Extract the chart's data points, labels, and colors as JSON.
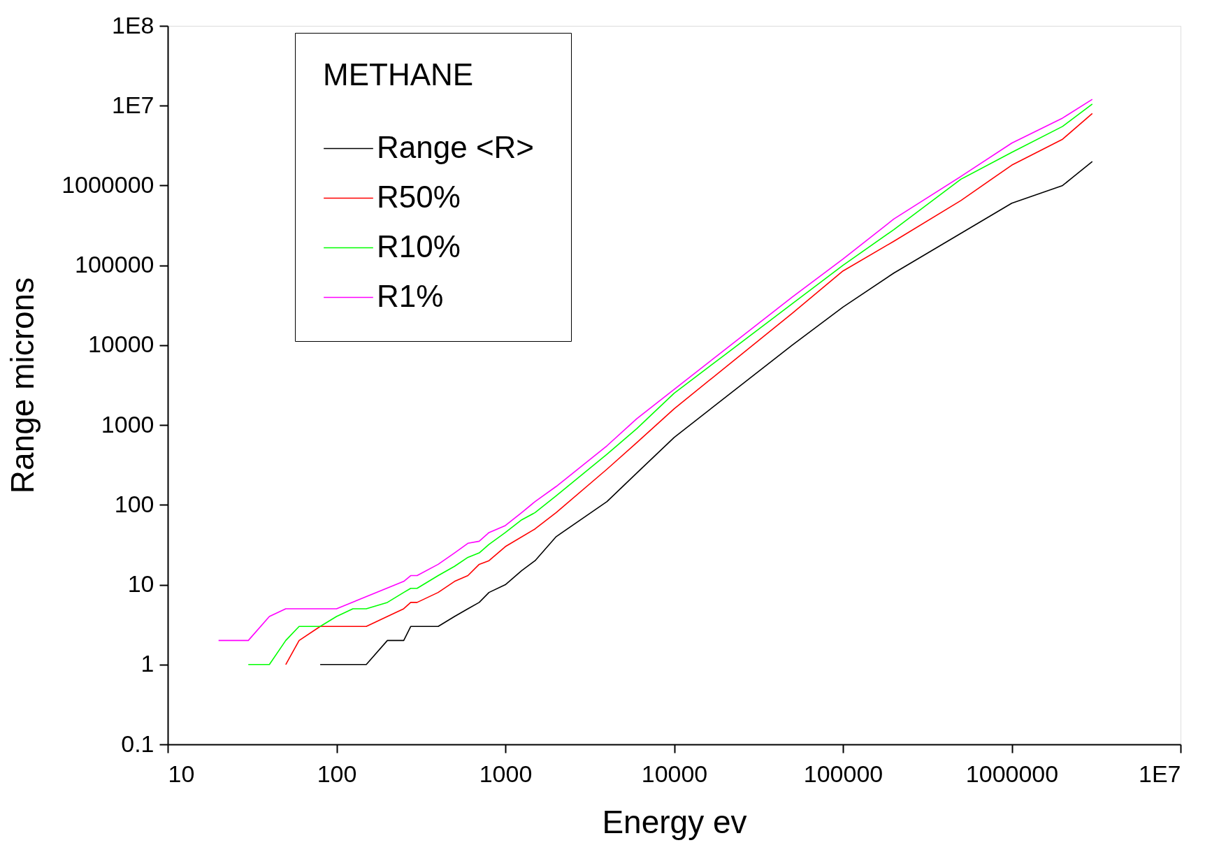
{
  "chart_data": {
    "type": "line",
    "xlabel": "Energy  ev",
    "ylabel": "Range  microns",
    "legend_title": "METHANE",
    "legend": "top left",
    "log": "xy",
    "grid": false,
    "marker": "none",
    "line_style": "solid",
    "xlim": [
      10,
      10000000
    ],
    "xticks": [
      10,
      100,
      1000,
      10000,
      100000,
      1000000,
      {
        "value": 10000000,
        "label": "1E7"
      }
    ],
    "ylim": [
      0.1,
      100000000
    ],
    "yticks": [
      0.1,
      1,
      10,
      100,
      1000,
      10000,
      100000,
      1000000,
      {
        "value": 10000000,
        "label": "1E7"
      },
      {
        "value": 100000000,
        "label": "1E8"
      }
    ],
    "series": [
      {
        "name": "Range  <R>",
        "color": "#000000",
        "x": [
          80,
          150,
          200,
          250,
          275,
          400,
          500,
          600,
          700,
          800,
          1000,
          1250,
          1500,
          2000,
          4000,
          6000,
          10000,
          50000,
          100000,
          200000,
          1000000,
          2000000,
          3000000
        ],
        "values": [
          1,
          1,
          2,
          2,
          3,
          3,
          4,
          5,
          6,
          8,
          10,
          15,
          20,
          40,
          110,
          250,
          700,
          10000,
          30000,
          80000,
          600000,
          1000000,
          2000000
        ]
      },
      {
        "name": "R50%",
        "color": "#ff0000",
        "x": [
          50,
          60,
          80,
          150,
          200,
          250,
          275,
          300,
          400,
          500,
          600,
          700,
          800,
          1000,
          1500,
          2000,
          4000,
          6000,
          10000,
          50000,
          100000,
          200000,
          500000,
          1000000,
          2000000,
          3000000
        ],
        "values": [
          1,
          2,
          3,
          3,
          4,
          5,
          6,
          6,
          8,
          11,
          13,
          18,
          20,
          30,
          50,
          80,
          280,
          600,
          1600,
          25000,
          85000,
          200000,
          650000,
          1800000,
          3800000,
          8000000
        ]
      },
      {
        "name": "R10%",
        "color": "#00ff00",
        "x": [
          30,
          40,
          50,
          60,
          80,
          100,
          125,
          150,
          200,
          250,
          275,
          300,
          400,
          500,
          600,
          700,
          800,
          1000,
          1250,
          1500,
          2000,
          4000,
          6000,
          10000,
          50000,
          100000,
          200000,
          500000,
          1000000,
          2000000,
          3000000
        ],
        "values": [
          1,
          1,
          2,
          3,
          3,
          4,
          5,
          5,
          6,
          8,
          9,
          9,
          13,
          17,
          22,
          25,
          32,
          45,
          65,
          80,
          130,
          430,
          900,
          2500,
          33000,
          100000,
          280000,
          1200000,
          2600000,
          5500000,
          10500000
        ]
      },
      {
        "name": "R1%",
        "color": "#ff00ff",
        "x": [
          20,
          30,
          40,
          50,
          100,
          250,
          275,
          300,
          400,
          500,
          600,
          700,
          800,
          1000,
          1250,
          1500,
          2000,
          4000,
          6000,
          10000,
          50000,
          100000,
          200000,
          500000,
          1000000,
          2000000,
          3000000
        ],
        "values": [
          2,
          2,
          4,
          5,
          5,
          11,
          13,
          13,
          18,
          25,
          33,
          35,
          45,
          55,
          80,
          110,
          170,
          550,
          1200,
          2800,
          40000,
          120000,
          380000,
          1300000,
          3400000,
          7000000,
          12000000
        ]
      }
    ]
  }
}
